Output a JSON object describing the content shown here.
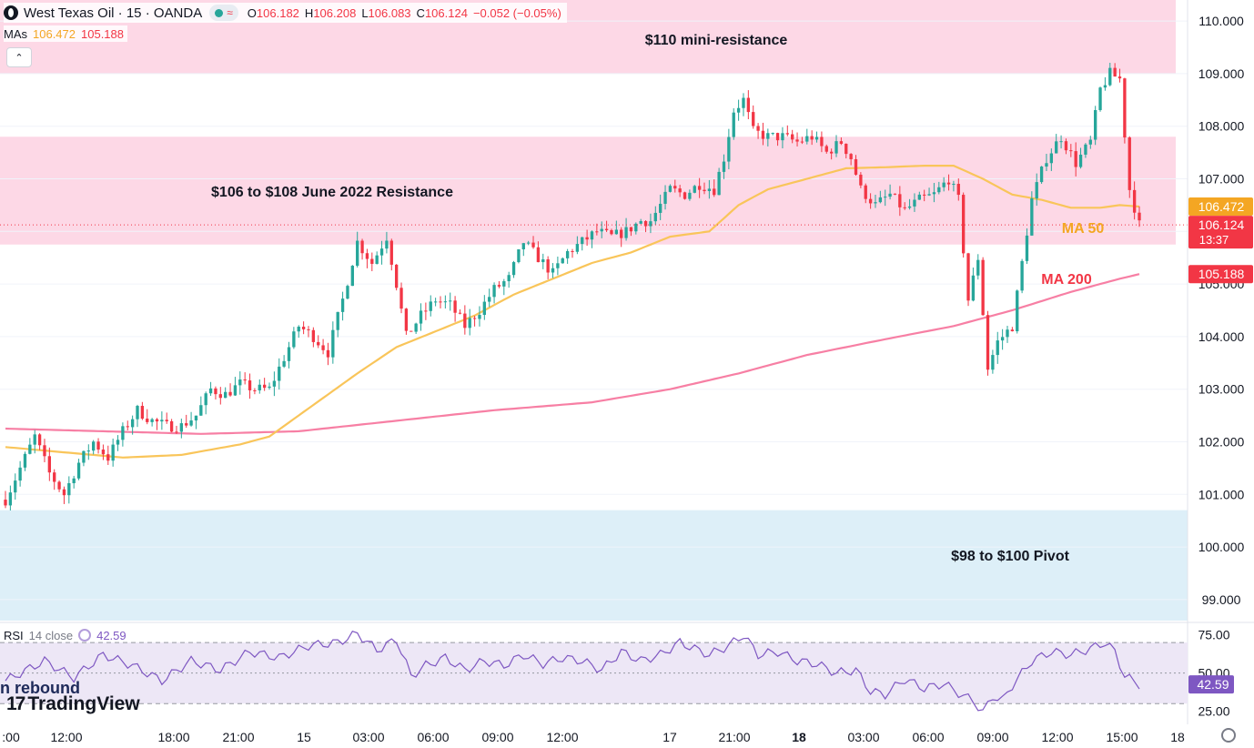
{
  "header": {
    "symbol": "West Texas Oil",
    "interval": "15",
    "broker": "OANDA",
    "separator": "·",
    "open_label": "O",
    "open": "106.182",
    "high_label": "H",
    "high": "106.208",
    "low_label": "L",
    "low": "106.083",
    "close_label": "C",
    "close": "106.124",
    "change": "−0.052 (−0.05%)"
  },
  "mas": {
    "label": "MAs",
    "ma50": "106.472",
    "ma200": "105.188"
  },
  "rsi": {
    "label": "RSI",
    "params": "14 close",
    "value": "42.59",
    "ticks": [
      "75.00",
      "50.00",
      "25.00"
    ]
  },
  "overlay_text": "n rebound",
  "brand": "TradingView",
  "colors": {
    "up": "#26a69a",
    "down": "#f23645",
    "ma50": "#f9c55a",
    "ma200": "#f77fa4",
    "resistance_zone": "#fdd8e6",
    "pivot_zone": "#ddeff8",
    "rsi_line": "#7e57c2",
    "rsi_band": "#ede7f6",
    "price_tag_ma50": "#f4a623",
    "price_tag_last": "#f23645",
    "price_tag_ma200": "#f23645",
    "rsi_tag": "#7e57c2"
  },
  "chart_data": {
    "type": "candlestick",
    "symbol": "West Texas Oil",
    "y_ticks": [
      "110.000",
      "109.000",
      "108.000",
      "107.000",
      "106.000",
      "105.000",
      "104.000",
      "103.000",
      "102.000",
      "101.000",
      "100.000",
      "99.000"
    ],
    "ylim": [
      98.6,
      110.4
    ],
    "x_ticks": [
      {
        "label": ":00",
        "bold": false
      },
      {
        "label": "12:00",
        "bold": false
      },
      {
        "label": "18:00",
        "bold": false
      },
      {
        "label": "21:00",
        "bold": false
      },
      {
        "label": "15",
        "bold": false
      },
      {
        "label": "03:00",
        "bold": false
      },
      {
        "label": "06:00",
        "bold": false
      },
      {
        "label": "09:00",
        "bold": false
      },
      {
        "label": "12:00",
        "bold": false
      },
      {
        "label": "17",
        "bold": false
      },
      {
        "label": "21:00",
        "bold": false
      },
      {
        "label": "18",
        "bold": true
      },
      {
        "label": "03:00",
        "bold": false
      },
      {
        "label": "06:00",
        "bold": false
      },
      {
        "label": "09:00",
        "bold": false
      },
      {
        "label": "12:00",
        "bold": false
      },
      {
        "label": "15:00",
        "bold": false
      },
      {
        "label": "18",
        "bold": false
      }
    ],
    "zones": [
      {
        "name": "$110 mini-resistance",
        "from": 109.0,
        "to": 110.4,
        "kind": "resistance"
      },
      {
        "name": "$106 to $108 June 2022 Resistance",
        "from": 105.75,
        "to": 107.8,
        "kind": "resistance"
      },
      {
        "name": "$98 to $100 Pivot",
        "from": 98.6,
        "to": 100.7,
        "kind": "pivot"
      }
    ],
    "annotations": [
      {
        "text": "MA 50",
        "color": "#f4a623"
      },
      {
        "text": "MA 200",
        "color": "#f23645"
      }
    ],
    "price_tags": [
      {
        "label": "106.472",
        "sub": "",
        "value": 106.472,
        "kind": "ma50"
      },
      {
        "label": "106.124",
        "sub": "13:37",
        "value": 106.124,
        "kind": "last"
      },
      {
        "label": "105.188",
        "sub": "",
        "value": 105.188,
        "kind": "ma200"
      }
    ],
    "anchors": [
      [
        0,
        100.9
      ],
      [
        3,
        101.5
      ],
      [
        6,
        102.1
      ],
      [
        9,
        101.4
      ],
      [
        12,
        101.0
      ],
      [
        15,
        101.6
      ],
      [
        18,
        102.0
      ],
      [
        21,
        101.7
      ],
      [
        24,
        102.2
      ],
      [
        27,
        102.6
      ],
      [
        30,
        102.4
      ],
      [
        33,
        102.3
      ],
      [
        36,
        102.3
      ],
      [
        39,
        102.5
      ],
      [
        42,
        103.0
      ],
      [
        45,
        102.9
      ],
      [
        48,
        103.1
      ],
      [
        51,
        103.0
      ],
      [
        54,
        103.0
      ],
      [
        57,
        103.6
      ],
      [
        60,
        104.2
      ],
      [
        63,
        104.0
      ],
      [
        66,
        103.7
      ],
      [
        69,
        104.7
      ],
      [
        72,
        105.8
      ],
      [
        75,
        105.4
      ],
      [
        78,
        105.9
      ],
      [
        80,
        105.0
      ],
      [
        82,
        104.0
      ],
      [
        85,
        104.4
      ],
      [
        88,
        104.7
      ],
      [
        91,
        104.6
      ],
      [
        94,
        104.2
      ],
      [
        97,
        104.5
      ],
      [
        100,
        104.9
      ],
      [
        103,
        105.1
      ],
      [
        106,
        105.8
      ],
      [
        109,
        105.5
      ],
      [
        112,
        105.2
      ],
      [
        115,
        105.6
      ],
      [
        118,
        105.8
      ],
      [
        121,
        106.0
      ],
      [
        124,
        105.9
      ],
      [
        127,
        106.0
      ],
      [
        130,
        106.2
      ],
      [
        132,
        106.2
      ],
      [
        136,
        106.8
      ],
      [
        139,
        106.7
      ],
      [
        142,
        106.9
      ],
      [
        145,
        106.8
      ],
      [
        147,
        107.4
      ],
      [
        149,
        108.3
      ],
      [
        151,
        108.5
      ],
      [
        153,
        107.9
      ],
      [
        156,
        107.8
      ],
      [
        159,
        107.8
      ],
      [
        162,
        107.7
      ],
      [
        165,
        107.8
      ],
      [
        168,
        107.5
      ],
      [
        171,
        107.7
      ],
      [
        173,
        107.4
      ],
      [
        175,
        106.8
      ],
      [
        178,
        106.5
      ],
      [
        181,
        106.7
      ],
      [
        184,
        106.4
      ],
      [
        187,
        106.6
      ],
      [
        190,
        106.7
      ],
      [
        193,
        107.0
      ],
      [
        195,
        106.6
      ],
      [
        197,
        104.7
      ],
      [
        199,
        105.5
      ],
      [
        201,
        103.4
      ],
      [
        203,
        103.9
      ],
      [
        206,
        104.2
      ],
      [
        208,
        105.4
      ],
      [
        210,
        106.6
      ],
      [
        213,
        107.4
      ],
      [
        216,
        107.8
      ],
      [
        219,
        107.3
      ],
      [
        222,
        107.7
      ],
      [
        224,
        108.7
      ],
      [
        226,
        109.0
      ],
      [
        228,
        108.9
      ],
      [
        230,
        106.8
      ],
      [
        232,
        106.124
      ]
    ],
    "ma50": [
      [
        0,
        101.9
      ],
      [
        12,
        101.8
      ],
      [
        24,
        101.7
      ],
      [
        36,
        101.75
      ],
      [
        48,
        101.95
      ],
      [
        54,
        102.1
      ],
      [
        60,
        102.5
      ],
      [
        66,
        102.9
      ],
      [
        72,
        103.3
      ],
      [
        80,
        103.8
      ],
      [
        88,
        104.1
      ],
      [
        96,
        104.4
      ],
      [
        104,
        104.8
      ],
      [
        112,
        105.1
      ],
      [
        120,
        105.4
      ],
      [
        128,
        105.6
      ],
      [
        136,
        105.9
      ],
      [
        144,
        106.0
      ],
      [
        150,
        106.5
      ],
      [
        156,
        106.8
      ],
      [
        164,
        107.0
      ],
      [
        172,
        107.2
      ],
      [
        180,
        107.22
      ],
      [
        188,
        107.25
      ],
      [
        194,
        107.25
      ],
      [
        200,
        107.0
      ],
      [
        206,
        106.7
      ],
      [
        212,
        106.6
      ],
      [
        218,
        106.45
      ],
      [
        224,
        106.45
      ],
      [
        228,
        106.5
      ],
      [
        232,
        106.472
      ]
    ],
    "ma200": [
      [
        0,
        102.25
      ],
      [
        20,
        102.2
      ],
      [
        40,
        102.15
      ],
      [
        60,
        102.2
      ],
      [
        80,
        102.4
      ],
      [
        100,
        102.6
      ],
      [
        120,
        102.75
      ],
      [
        136,
        103.0
      ],
      [
        150,
        103.3
      ],
      [
        164,
        103.65
      ],
      [
        180,
        103.95
      ],
      [
        194,
        104.2
      ],
      [
        206,
        104.5
      ],
      [
        218,
        104.85
      ],
      [
        228,
        105.1
      ],
      [
        232,
        105.188
      ]
    ],
    "rsi": [
      [
        0,
        45
      ],
      [
        8,
        58
      ],
      [
        14,
        47
      ],
      [
        20,
        62
      ],
      [
        26,
        55
      ],
      [
        32,
        45
      ],
      [
        38,
        58
      ],
      [
        44,
        52
      ],
      [
        50,
        64
      ],
      [
        56,
        60
      ],
      [
        62,
        68
      ],
      [
        68,
        70
      ],
      [
        72,
        76
      ],
      [
        76,
        65
      ],
      [
        80,
        72
      ],
      [
        83,
        48
      ],
      [
        86,
        55
      ],
      [
        90,
        60
      ],
      [
        94,
        52
      ],
      [
        98,
        58
      ],
      [
        102,
        55
      ],
      [
        106,
        62
      ],
      [
        110,
        56
      ],
      [
        114,
        60
      ],
      [
        118,
        58
      ],
      [
        122,
        52
      ],
      [
        126,
        64
      ],
      [
        130,
        58
      ],
      [
        134,
        62
      ],
      [
        138,
        70
      ],
      [
        141,
        66
      ],
      [
        144,
        62
      ],
      [
        148,
        68
      ],
      [
        151,
        75
      ],
      [
        154,
        62
      ],
      [
        158,
        64
      ],
      [
        162,
        58
      ],
      [
        166,
        56
      ],
      [
        170,
        50
      ],
      [
        174,
        52
      ],
      [
        177,
        38
      ],
      [
        180,
        36
      ],
      [
        184,
        46
      ],
      [
        188,
        40
      ],
      [
        192,
        43
      ],
      [
        196,
        35
      ],
      [
        198,
        32
      ],
      [
        200,
        24
      ],
      [
        202,
        35
      ],
      [
        204,
        32
      ],
      [
        206,
        42
      ],
      [
        210,
        58
      ],
      [
        214,
        64
      ],
      [
        218,
        62
      ],
      [
        222,
        66
      ],
      [
        225,
        70
      ],
      [
        227,
        64
      ],
      [
        229,
        48
      ],
      [
        232,
        42.59
      ]
    ],
    "n_candles": 233,
    "rsi_levels": [
      70,
      50,
      30
    ],
    "rsi_ylim": [
      20,
      82
    ]
  }
}
